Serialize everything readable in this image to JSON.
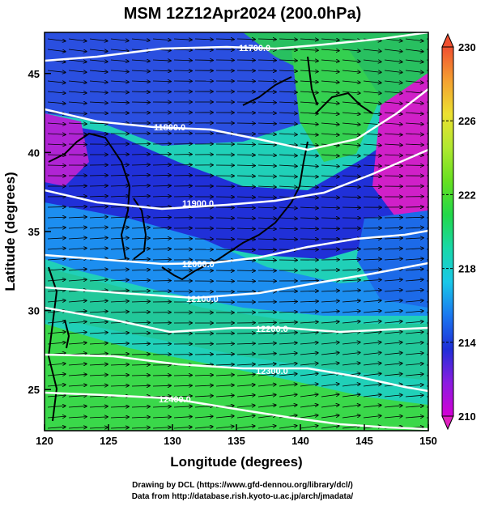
{
  "title": "MSM 12Z12Apr2024 (200.0hPa)",
  "xaxis": {
    "label": "Longitude (degrees)",
    "ticks": [
      "120",
      "125",
      "130",
      "135",
      "140",
      "145",
      "150"
    ],
    "range": [
      120,
      150
    ]
  },
  "yaxis": {
    "label": "Latitude  (degrees)",
    "ticks": [
      "25",
      "30",
      "35",
      "40",
      "45"
    ],
    "range": [
      22.4,
      47.6
    ]
  },
  "colorbar": {
    "ticks": [
      "210",
      "214",
      "218",
      "222",
      "226",
      "230"
    ],
    "range": [
      210,
      230
    ],
    "colors": [
      "#d400d4",
      "#8a1ce0",
      "#1f2fd8",
      "#1a78f0",
      "#19c8e8",
      "#18d8a8",
      "#22d84a",
      "#66e020",
      "#b0e830",
      "#ece030",
      "#f4a030",
      "#f05030"
    ]
  },
  "contours": [
    {
      "label": "11700.0"
    },
    {
      "label": "11800.0"
    },
    {
      "label": "11900.0"
    },
    {
      "label": "12000.0"
    },
    {
      "label": "12100.0"
    },
    {
      "label": "12200.0"
    },
    {
      "label": "12300.0"
    },
    {
      "label": "12400.0"
    }
  ],
  "footer": {
    "line1": "Drawing by DCL (https://www.gfd-dennou.org/library/dcl/)",
    "line2": "Data from http://database.rish.kyoto-u.ac.jp/arch/jmadata/"
  }
}
